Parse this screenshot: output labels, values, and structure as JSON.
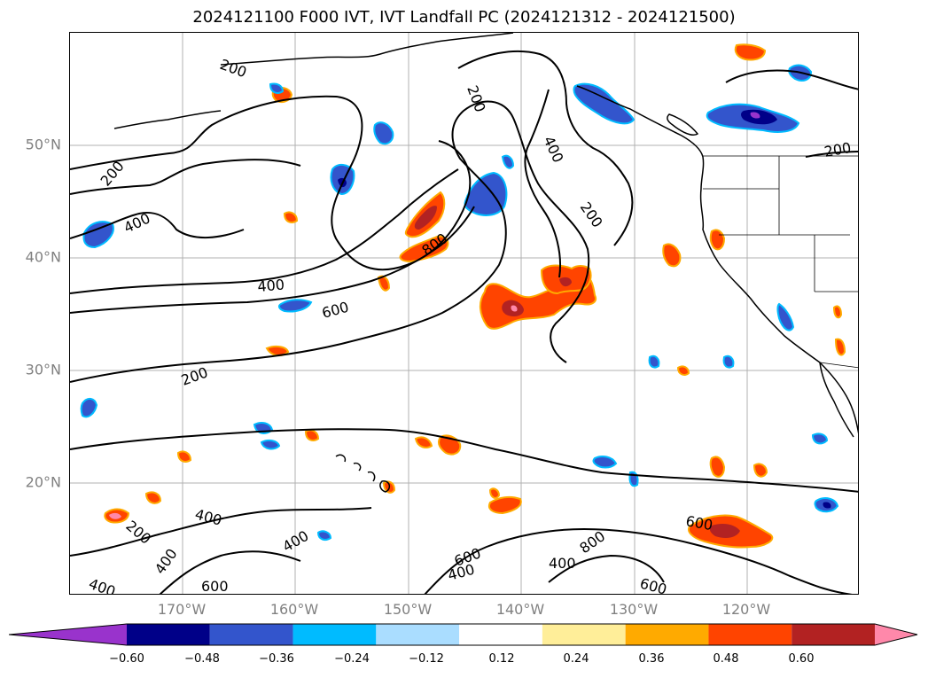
{
  "title": "2024121100 F000 IVT, IVT Landfall PC (2024121312 - 2024121500)",
  "lat_labels": [
    "50°N",
    "40°N",
    "30°N",
    "20°N"
  ],
  "lon_labels": [
    "170°W",
    "160°W",
    "150°W",
    "140°W",
    "130°W",
    "120°W"
  ],
  "contour_labels": [
    "200",
    "200",
    "200",
    "200",
    "200",
    "200",
    "200",
    "400",
    "400",
    "400",
    "400",
    "400",
    "400",
    "400",
    "400",
    "400",
    "600",
    "600",
    "600",
    "600",
    "800"
  ],
  "colorbar": {
    "ticks": [
      "−0.60",
      "−0.48",
      "−0.36",
      "−0.24",
      "−0.12",
      "0.12",
      "0.24",
      "0.36",
      "0.48",
      "0.60"
    ],
    "colors": [
      "#9933cc",
      "#000088",
      "#3355cc",
      "#00bbff",
      "#aaddff",
      "#ffffff",
      "#ffee99",
      "#ffaa00",
      "#ff4400",
      "#b22222",
      "#ff88aa"
    ],
    "extend": "both"
  },
  "colors": {
    "gridline": "#b0b0b0",
    "coastline": "#000000",
    "tick_label": "#808080"
  }
}
